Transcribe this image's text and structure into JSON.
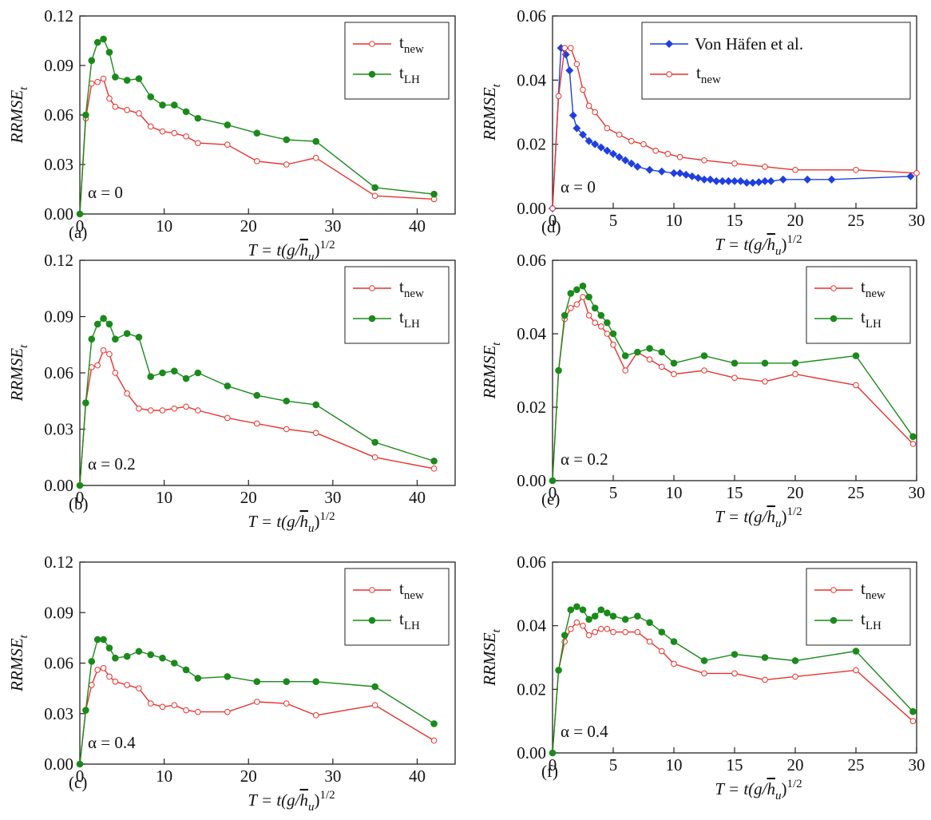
{
  "chart_data": [
    {
      "type": "line",
      "panel": "(a)",
      "annotation": "α = 0",
      "ylabel": [
        "RRMSE",
        "t"
      ],
      "xlabel": [
        "T = t(g/",
        "h",
        "u",
        ")",
        "1/2"
      ],
      "legend": "upper right",
      "xlim": [
        0,
        44.5
      ],
      "ylim": [
        0,
        0.12
      ],
      "xticks": [
        0,
        10,
        20,
        30,
        40
      ],
      "yticks": [
        {
          "value": 0,
          "label": "0.00"
        },
        {
          "value": 0.03,
          "label": "0.03"
        },
        {
          "value": 0.06,
          "label": "0.06"
        },
        {
          "value": 0.09,
          "label": "0.09"
        },
        {
          "value": 0.12,
          "label": "0.12"
        }
      ],
      "series": [
        {
          "name": [
            "t",
            "new"
          ],
          "color": "#e8322c",
          "marker": "open-circle",
          "x": [
            0,
            0.7,
            1.4,
            2.1,
            2.8,
            3.5,
            4.2,
            5.6,
            7.0,
            8.4,
            9.8,
            11.2,
            12.6,
            14.0,
            17.5,
            21.0,
            24.5,
            28.0,
            35.0,
            42.0
          ],
          "values": [
            0,
            0.058,
            0.079,
            0.08,
            0.082,
            0.07,
            0.065,
            0.063,
            0.061,
            0.053,
            0.05,
            0.049,
            0.047,
            0.043,
            0.042,
            0.032,
            0.03,
            0.034,
            0.011,
            0.009
          ]
        },
        {
          "name": [
            "t",
            "LH"
          ],
          "color": "#1a8a1a",
          "marker": "filled-circle",
          "x": [
            0,
            0.7,
            1.4,
            2.1,
            2.8,
            3.5,
            4.2,
            5.6,
            7.0,
            8.4,
            9.8,
            11.2,
            12.6,
            14.0,
            17.5,
            21.0,
            24.5,
            28.0,
            35.0,
            42.0
          ],
          "values": [
            0,
            0.06,
            0.093,
            0.104,
            0.106,
            0.098,
            0.083,
            0.081,
            0.082,
            0.071,
            0.066,
            0.066,
            0.062,
            0.058,
            0.054,
            0.049,
            0.045,
            0.044,
            0.016,
            0.012
          ]
        }
      ]
    },
    {
      "type": "line",
      "panel": "(b)",
      "annotation": "α = 0.2",
      "ylabel": [
        "RRMSE",
        "t"
      ],
      "xlabel": [
        "T = t(g/",
        "h",
        "u",
        ")",
        "1/2"
      ],
      "legend": "upper right",
      "xlim": [
        0,
        44.5
      ],
      "ylim": [
        0,
        0.12
      ],
      "xticks": [
        0,
        10,
        20,
        30,
        40
      ],
      "yticks": [
        {
          "value": 0,
          "label": "0.00"
        },
        {
          "value": 0.03,
          "label": "0.03"
        },
        {
          "value": 0.06,
          "label": "0.06"
        },
        {
          "value": 0.09,
          "label": "0.09"
        },
        {
          "value": 0.12,
          "label": "0.12"
        }
      ],
      "series": [
        {
          "name": [
            "t",
            "new"
          ],
          "color": "#e8322c",
          "marker": "open-circle",
          "x": [
            0,
            0.7,
            1.4,
            2.1,
            2.8,
            3.5,
            4.2,
            5.6,
            7.0,
            8.4,
            9.8,
            11.2,
            12.6,
            14.0,
            17.5,
            21.0,
            24.5,
            28.0,
            35.0,
            42.0
          ],
          "values": [
            0,
            0.044,
            0.063,
            0.064,
            0.072,
            0.07,
            0.06,
            0.049,
            0.041,
            0.04,
            0.04,
            0.041,
            0.042,
            0.04,
            0.036,
            0.033,
            0.03,
            0.028,
            0.015,
            0.009
          ]
        },
        {
          "name": [
            "t",
            "LH"
          ],
          "color": "#1a8a1a",
          "marker": "filled-circle",
          "x": [
            0,
            0.7,
            1.4,
            2.1,
            2.8,
            3.5,
            4.2,
            5.6,
            7.0,
            8.4,
            9.8,
            11.2,
            12.6,
            14.0,
            17.5,
            21.0,
            24.5,
            28.0,
            35.0,
            42.0
          ],
          "values": [
            0,
            0.044,
            0.078,
            0.086,
            0.089,
            0.086,
            0.078,
            0.081,
            0.079,
            0.058,
            0.06,
            0.061,
            0.057,
            0.06,
            0.053,
            0.048,
            0.045,
            0.043,
            0.023,
            0.013
          ]
        }
      ]
    },
    {
      "type": "line",
      "panel": "(c)",
      "annotation": "α = 0.4",
      "ylabel": [
        "RRMSE",
        "t"
      ],
      "xlabel": [
        "T = t(g/",
        "h",
        "u",
        ")",
        "1/2"
      ],
      "legend": "upper right",
      "xlim": [
        0,
        44.5
      ],
      "ylim": [
        0,
        0.12
      ],
      "xticks": [
        0,
        10,
        20,
        30,
        40
      ],
      "yticks": [
        {
          "value": 0,
          "label": "0.00"
        },
        {
          "value": 0.03,
          "label": "0.03"
        },
        {
          "value": 0.06,
          "label": "0.06"
        },
        {
          "value": 0.09,
          "label": "0.09"
        },
        {
          "value": 0.12,
          "label": "0.12"
        }
      ],
      "series": [
        {
          "name": [
            "t",
            "new"
          ],
          "color": "#e8322c",
          "marker": "open-circle",
          "x": [
            0,
            0.7,
            1.4,
            2.1,
            2.8,
            3.5,
            4.2,
            5.6,
            7.0,
            8.4,
            9.8,
            11.2,
            12.6,
            14.0,
            17.5,
            21.0,
            24.5,
            28.0,
            35.0,
            42.0
          ],
          "values": [
            0,
            0.032,
            0.047,
            0.056,
            0.057,
            0.052,
            0.049,
            0.047,
            0.045,
            0.036,
            0.034,
            0.035,
            0.032,
            0.031,
            0.031,
            0.037,
            0.036,
            0.029,
            0.035,
            0.014
          ]
        },
        {
          "name": [
            "t",
            "LH"
          ],
          "color": "#1a8a1a",
          "marker": "filled-circle",
          "x": [
            0,
            0.7,
            1.4,
            2.1,
            2.8,
            3.5,
            4.2,
            5.6,
            7.0,
            8.4,
            9.8,
            11.2,
            12.6,
            14.0,
            17.5,
            21.0,
            24.5,
            28.0,
            35.0,
            42.0
          ],
          "values": [
            0,
            0.032,
            0.061,
            0.074,
            0.074,
            0.069,
            0.063,
            0.064,
            0.067,
            0.065,
            0.063,
            0.06,
            0.056,
            0.051,
            0.052,
            0.049,
            0.049,
            0.049,
            0.046,
            0.024
          ]
        }
      ]
    },
    {
      "type": "line",
      "panel": "(d)",
      "annotation": "α = 0",
      "ylabel": [
        "RRMSE",
        "t"
      ],
      "xlabel": [
        "T = t(g/",
        "h",
        "u",
        ")",
        "1/2"
      ],
      "legend": "upper right",
      "xlim": [
        0,
        30
      ],
      "ylim": [
        0,
        0.06
      ],
      "xticks": [
        0,
        5,
        10,
        15,
        20,
        25,
        30
      ],
      "yticks": [
        {
          "value": 0,
          "label": "0.00"
        },
        {
          "value": 0.02,
          "label": "0.02"
        },
        {
          "value": 0.04,
          "label": "0.04"
        },
        {
          "value": 0.06,
          "label": "0.06"
        }
      ],
      "series": [
        {
          "name": "Von Häfen et al.",
          "color": "#1f3fe0",
          "marker": "diamond",
          "x": [
            0,
            0.7,
            1.1,
            1.4,
            1.7,
            2.0,
            2.5,
            3,
            3.5,
            4,
            4.5,
            5,
            5.5,
            6,
            6.5,
            7,
            8,
            9,
            10,
            10.5,
            11,
            11.5,
            12,
            12.5,
            13,
            13.5,
            14,
            14.5,
            15,
            15.5,
            16,
            16.5,
            17,
            17.5,
            18,
            19,
            21,
            23,
            29.5
          ],
          "values": [
            0,
            0.05,
            0.048,
            0.043,
            0.029,
            0.025,
            0.023,
            0.021,
            0.02,
            0.019,
            0.018,
            0.017,
            0.016,
            0.015,
            0.014,
            0.013,
            0.012,
            0.0115,
            0.011,
            0.011,
            0.0105,
            0.01,
            0.0095,
            0.009,
            0.009,
            0.0085,
            0.0085,
            0.0085,
            0.0085,
            0.0085,
            0.008,
            0.008,
            0.0082,
            0.0085,
            0.0085,
            0.009,
            0.009,
            0.009,
            0.01
          ]
        },
        {
          "name": [
            "t",
            "new"
          ],
          "color": "#e8322c",
          "marker": "open-circle",
          "x": [
            0,
            0.5,
            1,
            1.5,
            2,
            2.5,
            3,
            3.5,
            4.5,
            5.5,
            6.5,
            7.5,
            8.5,
            9.5,
            10.5,
            12.5,
            15,
            17.5,
            20,
            25,
            30
          ],
          "values": [
            0,
            0.035,
            0.05,
            0.05,
            0.045,
            0.037,
            0.032,
            0.03,
            0.025,
            0.023,
            0.021,
            0.02,
            0.018,
            0.017,
            0.016,
            0.015,
            0.014,
            0.013,
            0.012,
            0.012,
            0.011
          ]
        }
      ]
    },
    {
      "type": "line",
      "panel": "(e)",
      "annotation": "α = 0.2",
      "ylabel": [
        "RRMSE",
        "t"
      ],
      "xlabel": [
        "T = t(g/",
        "h",
        "u",
        ")",
        "1/2"
      ],
      "legend": "upper right",
      "xlim": [
        0,
        30
      ],
      "ylim": [
        0,
        0.06
      ],
      "xticks": [
        0,
        5,
        10,
        15,
        20,
        25,
        30
      ],
      "yticks": [
        {
          "value": 0,
          "label": "0.00"
        },
        {
          "value": 0.02,
          "label": "0.02"
        },
        {
          "value": 0.04,
          "label": "0.04"
        },
        {
          "value": 0.06,
          "label": "0.06"
        }
      ],
      "series": [
        {
          "name": [
            "t",
            "new"
          ],
          "color": "#e8322c",
          "marker": "open-circle",
          "x": [
            0,
            0.5,
            1,
            1.5,
            2,
            2.5,
            3,
            3.5,
            4,
            4.5,
            5,
            6,
            7,
            8,
            9,
            10,
            12.5,
            15,
            17.5,
            20,
            25,
            29.7
          ],
          "values": [
            0,
            0.03,
            0.044,
            0.047,
            0.048,
            0.05,
            0.045,
            0.043,
            0.042,
            0.04,
            0.037,
            0.03,
            0.035,
            0.033,
            0.031,
            0.029,
            0.03,
            0.028,
            0.027,
            0.029,
            0.026,
            0.01
          ]
        },
        {
          "name": [
            "t",
            "LH"
          ],
          "color": "#1a8a1a",
          "marker": "filled-circle",
          "x": [
            0,
            0.5,
            1,
            1.5,
            2,
            2.5,
            3,
            3.5,
            4,
            4.5,
            5,
            6,
            7,
            8,
            9,
            10,
            12.5,
            15,
            17.5,
            20,
            25,
            29.7
          ],
          "values": [
            0,
            0.03,
            0.045,
            0.051,
            0.052,
            0.053,
            0.05,
            0.047,
            0.045,
            0.043,
            0.04,
            0.034,
            0.035,
            0.036,
            0.035,
            0.032,
            0.034,
            0.032,
            0.032,
            0.032,
            0.034,
            0.012
          ]
        }
      ]
    },
    {
      "type": "line",
      "panel": "(f)",
      "annotation": "α = 0.4",
      "ylabel": [
        "RRMSE",
        "t"
      ],
      "xlabel": [
        "T = t(g/",
        "h",
        "u",
        ")",
        "1/2"
      ],
      "legend": "upper right",
      "xlim": [
        0,
        30
      ],
      "ylim": [
        0,
        0.06
      ],
      "xticks": [
        0,
        5,
        10,
        15,
        20,
        25,
        30
      ],
      "yticks": [
        {
          "value": 0,
          "label": "0.00"
        },
        {
          "value": 0.02,
          "label": "0.02"
        },
        {
          "value": 0.04,
          "label": "0.04"
        },
        {
          "value": 0.06,
          "label": "0.06"
        }
      ],
      "series": [
        {
          "name": [
            "t",
            "new"
          ],
          "color": "#e8322c",
          "marker": "open-circle",
          "x": [
            0,
            0.5,
            1,
            1.5,
            2,
            2.5,
            3,
            3.5,
            4,
            4.5,
            5,
            6,
            7,
            8,
            9,
            10,
            12.5,
            15,
            17.5,
            20,
            25,
            29.7
          ],
          "values": [
            0,
            0.026,
            0.035,
            0.039,
            0.041,
            0.04,
            0.037,
            0.038,
            0.039,
            0.039,
            0.038,
            0.038,
            0.038,
            0.035,
            0.032,
            0.028,
            0.025,
            0.025,
            0.023,
            0.024,
            0.026,
            0.01
          ]
        },
        {
          "name": [
            "t",
            "LH"
          ],
          "color": "#1a8a1a",
          "marker": "filled-circle",
          "x": [
            0,
            0.5,
            1,
            1.5,
            2,
            2.5,
            3,
            3.5,
            4,
            4.5,
            5,
            6,
            7,
            8,
            9,
            10,
            12.5,
            15,
            17.5,
            20,
            25,
            29.7
          ],
          "values": [
            0,
            0.026,
            0.037,
            0.045,
            0.046,
            0.045,
            0.042,
            0.043,
            0.045,
            0.044,
            0.043,
            0.042,
            0.043,
            0.041,
            0.038,
            0.035,
            0.029,
            0.031,
            0.03,
            0.029,
            0.032,
            0.013
          ]
        }
      ]
    }
  ]
}
